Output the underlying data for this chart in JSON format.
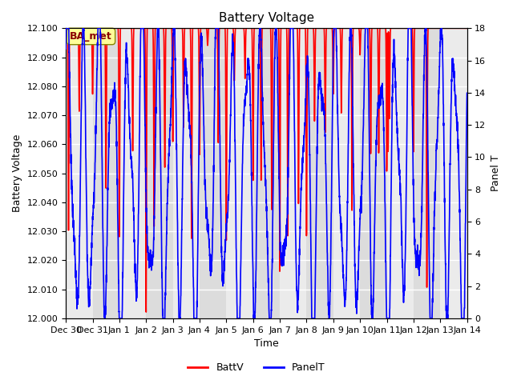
{
  "title": "Battery Voltage",
  "xlabel": "Time",
  "ylabel_left": "Battery Voltage",
  "ylabel_right": "Panel T",
  "ylim_left": [
    12.0,
    12.1
  ],
  "ylim_right": [
    0,
    18
  ],
  "yticks_left": [
    12.0,
    12.01,
    12.02,
    12.03,
    12.04,
    12.05,
    12.06,
    12.07,
    12.08,
    12.09,
    12.1
  ],
  "yticks_right": [
    0,
    2,
    4,
    6,
    8,
    10,
    12,
    14,
    16,
    18
  ],
  "annotation_text": "BA_met",
  "annotation_color": "#8B0000",
  "annotation_bg": "#FFFF99",
  "batt_color": "#FF0000",
  "panel_color": "#0000FF",
  "bg_color_odd": "#DCDCDC",
  "bg_color_even": "#EBEBEB",
  "grid_color": "#FFFFFF",
  "title_fontsize": 11,
  "axis_fontsize": 9,
  "tick_fontsize": 8,
  "legend_fontsize": 9,
  "tick_labels": [
    "Dec 30",
    "Dec 31",
    "Jan 1",
    "Jan 2",
    "Jan 3",
    "Jan 4",
    "Jan 5",
    "Jan 6",
    "Jan 7",
    "Jan 8",
    "Jan 9",
    "Jan 10",
    "Jan 11",
    "Jan 12",
    "Jan 13",
    "Jan 14"
  ],
  "tick_positions": [
    0,
    1,
    2,
    3,
    4,
    5,
    6,
    7,
    8,
    9,
    10,
    11,
    12,
    13,
    14,
    15
  ]
}
